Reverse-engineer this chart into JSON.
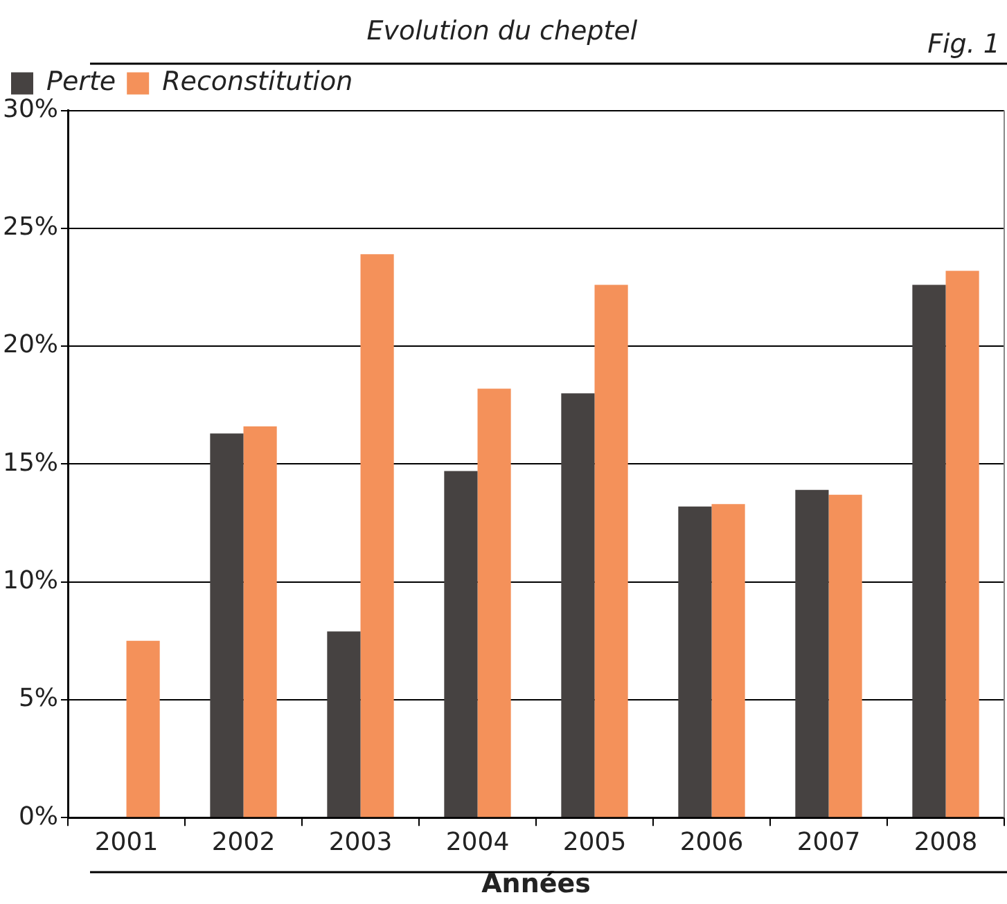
{
  "chart_data": {
    "type": "bar",
    "title": "Evolution du cheptel",
    "annotations": [
      "Fig. 1"
    ],
    "xlabel": "Années",
    "categories": [
      "2001",
      "2002",
      "2003",
      "2004",
      "2005",
      "2006",
      "2007",
      "2008"
    ],
    "series": [
      {
        "name": "Perte",
        "color": "#464241",
        "values": [
          null,
          16.3,
          7.9,
          14.7,
          18.0,
          13.2,
          13.9,
          22.6
        ]
      },
      {
        "name": "Reconstitution",
        "color": "#f4915a",
        "values": [
          7.5,
          16.6,
          23.9,
          18.2,
          22.6,
          13.3,
          13.7,
          23.2
        ]
      }
    ],
    "ylim": [
      0,
      30
    ],
    "yticks": [
      {
        "value": 0,
        "label": "0%"
      },
      {
        "value": 5,
        "label": "5%"
      },
      {
        "value": 10,
        "label": "10%"
      },
      {
        "value": 15,
        "label": "15%"
      },
      {
        "value": 20,
        "label": "20%"
      },
      {
        "value": 25,
        "label": "25%"
      },
      {
        "value": 30,
        "label": "30%"
      }
    ],
    "grid": "y",
    "legend": "top left"
  }
}
